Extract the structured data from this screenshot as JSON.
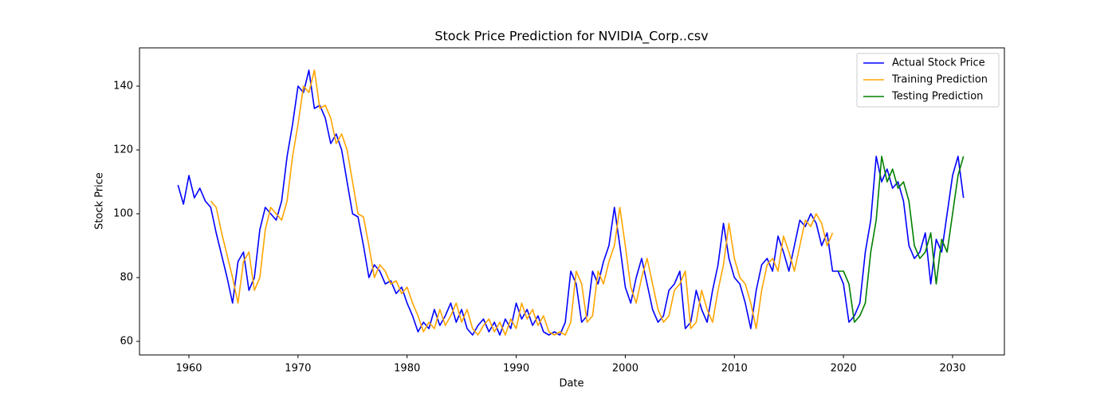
{
  "chart_data": {
    "type": "line",
    "title": "Stock Price Prediction for NVIDIA_Corp..csv",
    "x_label": "Date",
    "y_label": "Stock Price",
    "xlim": [
      1955.47,
      2034.75
    ],
    "ylim": [
      55.75,
      152
    ],
    "xticks": [
      1960,
      1970,
      1980,
      1990,
      2000,
      2010,
      2020,
      2030
    ],
    "yticks": [
      60,
      80,
      100,
      120,
      140
    ],
    "grid": false,
    "legend": "upper right",
    "series": [
      {
        "name": "Actual Stock Price",
        "color": "#0000ff",
        "x": [
          1959,
          1959.5,
          1960,
          1960.5,
          1961,
          1961.5,
          1962,
          1962.5,
          1963,
          1963.5,
          1964,
          1964.5,
          1965,
          1965.5,
          1966,
          1966.5,
          1967,
          1967.5,
          1968,
          1968.5,
          1969,
          1969.5,
          1970,
          1970.5,
          1971,
          1971.5,
          1972,
          1972.5,
          1973,
          1973.5,
          1974,
          1974.5,
          1975,
          1975.5,
          1976,
          1976.5,
          1977,
          1977.5,
          1978,
          1978.5,
          1979,
          1979.5,
          1980,
          1980.5,
          1981,
          1981.5,
          1982,
          1982.5,
          1983,
          1983.5,
          1984,
          1984.5,
          1985,
          1985.5,
          1986,
          1986.5,
          1987,
          1987.5,
          1988,
          1988.5,
          1989,
          1989.5,
          1990,
          1990.5,
          1991,
          1991.5,
          1992,
          1992.5,
          1993,
          1993.5,
          1994,
          1994.5,
          1995,
          1995.5,
          1996,
          1996.5,
          1997,
          1997.5,
          1998,
          1998.5,
          1999,
          1999.5,
          2000,
          2000.5,
          2001,
          2001.5,
          2002,
          2002.5,
          2003,
          2003.5,
          2004,
          2004.5,
          2005,
          2005.5,
          2006,
          2006.5,
          2007,
          2007.5,
          2008,
          2008.5,
          2009,
          2009.5,
          2010,
          2010.5,
          2011,
          2011.5,
          2012,
          2012.5,
          2013,
          2013.5,
          2014,
          2014.5,
          2015,
          2015.5,
          2016,
          2016.5,
          2017,
          2017.5,
          2018,
          2018.5,
          2019,
          2019.5,
          2020,
          2020.5,
          2021,
          2021.5,
          2022,
          2022.5,
          2023,
          2023.5,
          2024,
          2024.5,
          2025,
          2025.5,
          2026,
          2026.5,
          2027,
          2027.5,
          2028,
          2028.5,
          2029,
          2029.5,
          2030,
          2030.5,
          2031
        ],
        "values": [
          109,
          103,
          112,
          105,
          108,
          104,
          102,
          94,
          87,
          80,
          72,
          85,
          88,
          76,
          80,
          95,
          102,
          100,
          98,
          104,
          118,
          128,
          140,
          138,
          145,
          133,
          134,
          130,
          122,
          125,
          120,
          110,
          100,
          99,
          90,
          80,
          84,
          82,
          78,
          79,
          75,
          77,
          72,
          68,
          63,
          66,
          64,
          70,
          65,
          68,
          72,
          66,
          70,
          64,
          62,
          65,
          67,
          63,
          66,
          62,
          67,
          64,
          72,
          67,
          70,
          65,
          68,
          63,
          62,
          63,
          62,
          66,
          82,
          78,
          66,
          68,
          82,
          78,
          85,
          90,
          102,
          90,
          77,
          72,
          80,
          86,
          78,
          70,
          66,
          68,
          76,
          78,
          82,
          64,
          66,
          76,
          70,
          66,
          76,
          84,
          97,
          86,
          80,
          78,
          72,
          64,
          76,
          84,
          86,
          82,
          93,
          88,
          82,
          90,
          98,
          96,
          100,
          97,
          90,
          94,
          82,
          82,
          78,
          66,
          68,
          72,
          88,
          98,
          118,
          110,
          114,
          108,
          110,
          104,
          90,
          86,
          88,
          94,
          78,
          92,
          88,
          100,
          112,
          118,
          105
        ]
      },
      {
        "name": "Training Prediction",
        "color": "#ffa500",
        "x": [
          1962,
          1962.5,
          1963,
          1963.5,
          1964,
          1964.5,
          1965,
          1965.5,
          1966,
          1966.5,
          1967,
          1967.5,
          1968,
          1968.5,
          1969,
          1969.5,
          1970,
          1970.5,
          1971,
          1971.5,
          1972,
          1972.5,
          1973,
          1973.5,
          1974,
          1974.5,
          1975,
          1975.5,
          1976,
          1976.5,
          1977,
          1977.5,
          1978,
          1978.5,
          1979,
          1979.5,
          1980,
          1980.5,
          1981,
          1981.5,
          1982,
          1982.5,
          1983,
          1983.5,
          1984,
          1984.5,
          1985,
          1985.5,
          1986,
          1986.5,
          1987,
          1987.5,
          1988,
          1988.5,
          1989,
          1989.5,
          1990,
          1990.5,
          1991,
          1991.5,
          1992,
          1992.5,
          1993,
          1993.5,
          1994,
          1994.5,
          1995,
          1995.5,
          1996,
          1996.5,
          1997,
          1997.5,
          1998,
          1998.5,
          1999,
          1999.5,
          2000,
          2000.5,
          2001,
          2001.5,
          2002,
          2002.5,
          2003,
          2003.5,
          2004,
          2004.5,
          2005,
          2005.5,
          2006,
          2006.5,
          2007,
          2007.5,
          2008,
          2008.5,
          2009,
          2009.5,
          2010,
          2010.5,
          2011,
          2011.5,
          2012,
          2012.5,
          2013,
          2013.5,
          2014,
          2014.5,
          2015,
          2015.5,
          2016,
          2016.5,
          2017,
          2017.5,
          2018,
          2018.5,
          2019
        ],
        "values": [
          104,
          102,
          94,
          87,
          80,
          72,
          85,
          88,
          76,
          80,
          95,
          102,
          100,
          98,
          104,
          118,
          128,
          140,
          138,
          145,
          133,
          134,
          130,
          122,
          125,
          120,
          110,
          100,
          99,
          90,
          80,
          84,
          82,
          78,
          79,
          75,
          77,
          72,
          68,
          63,
          66,
          64,
          70,
          65,
          68,
          72,
          66,
          70,
          64,
          62,
          65,
          67,
          63,
          66,
          62,
          67,
          64,
          72,
          67,
          70,
          65,
          68,
          63,
          62,
          63,
          62,
          66,
          82,
          78,
          66,
          68,
          82,
          78,
          85,
          90,
          102,
          90,
          77,
          72,
          80,
          86,
          78,
          70,
          66,
          68,
          76,
          78,
          82,
          64,
          66,
          76,
          70,
          66,
          76,
          84,
          97,
          86,
          80,
          78,
          72,
          64,
          76,
          84,
          86,
          82,
          93,
          88,
          82,
          90,
          98,
          96,
          100,
          97,
          90,
          94
        ]
      },
      {
        "name": "Testing Prediction",
        "color": "#008000",
        "x": [
          2019.5,
          2020,
          2020.5,
          2021,
          2021.5,
          2022,
          2022.5,
          2023,
          2023.5,
          2024,
          2024.5,
          2025,
          2025.5,
          2026,
          2026.5,
          2027,
          2027.5,
          2028,
          2028.5,
          2029,
          2029.5,
          2030,
          2030.5,
          2031
        ],
        "values": [
          82,
          82,
          78,
          66,
          68,
          72,
          88,
          98,
          118,
          110,
          114,
          108,
          110,
          104,
          90,
          86,
          88,
          94,
          78,
          92,
          88,
          100,
          112,
          118
        ]
      }
    ]
  }
}
